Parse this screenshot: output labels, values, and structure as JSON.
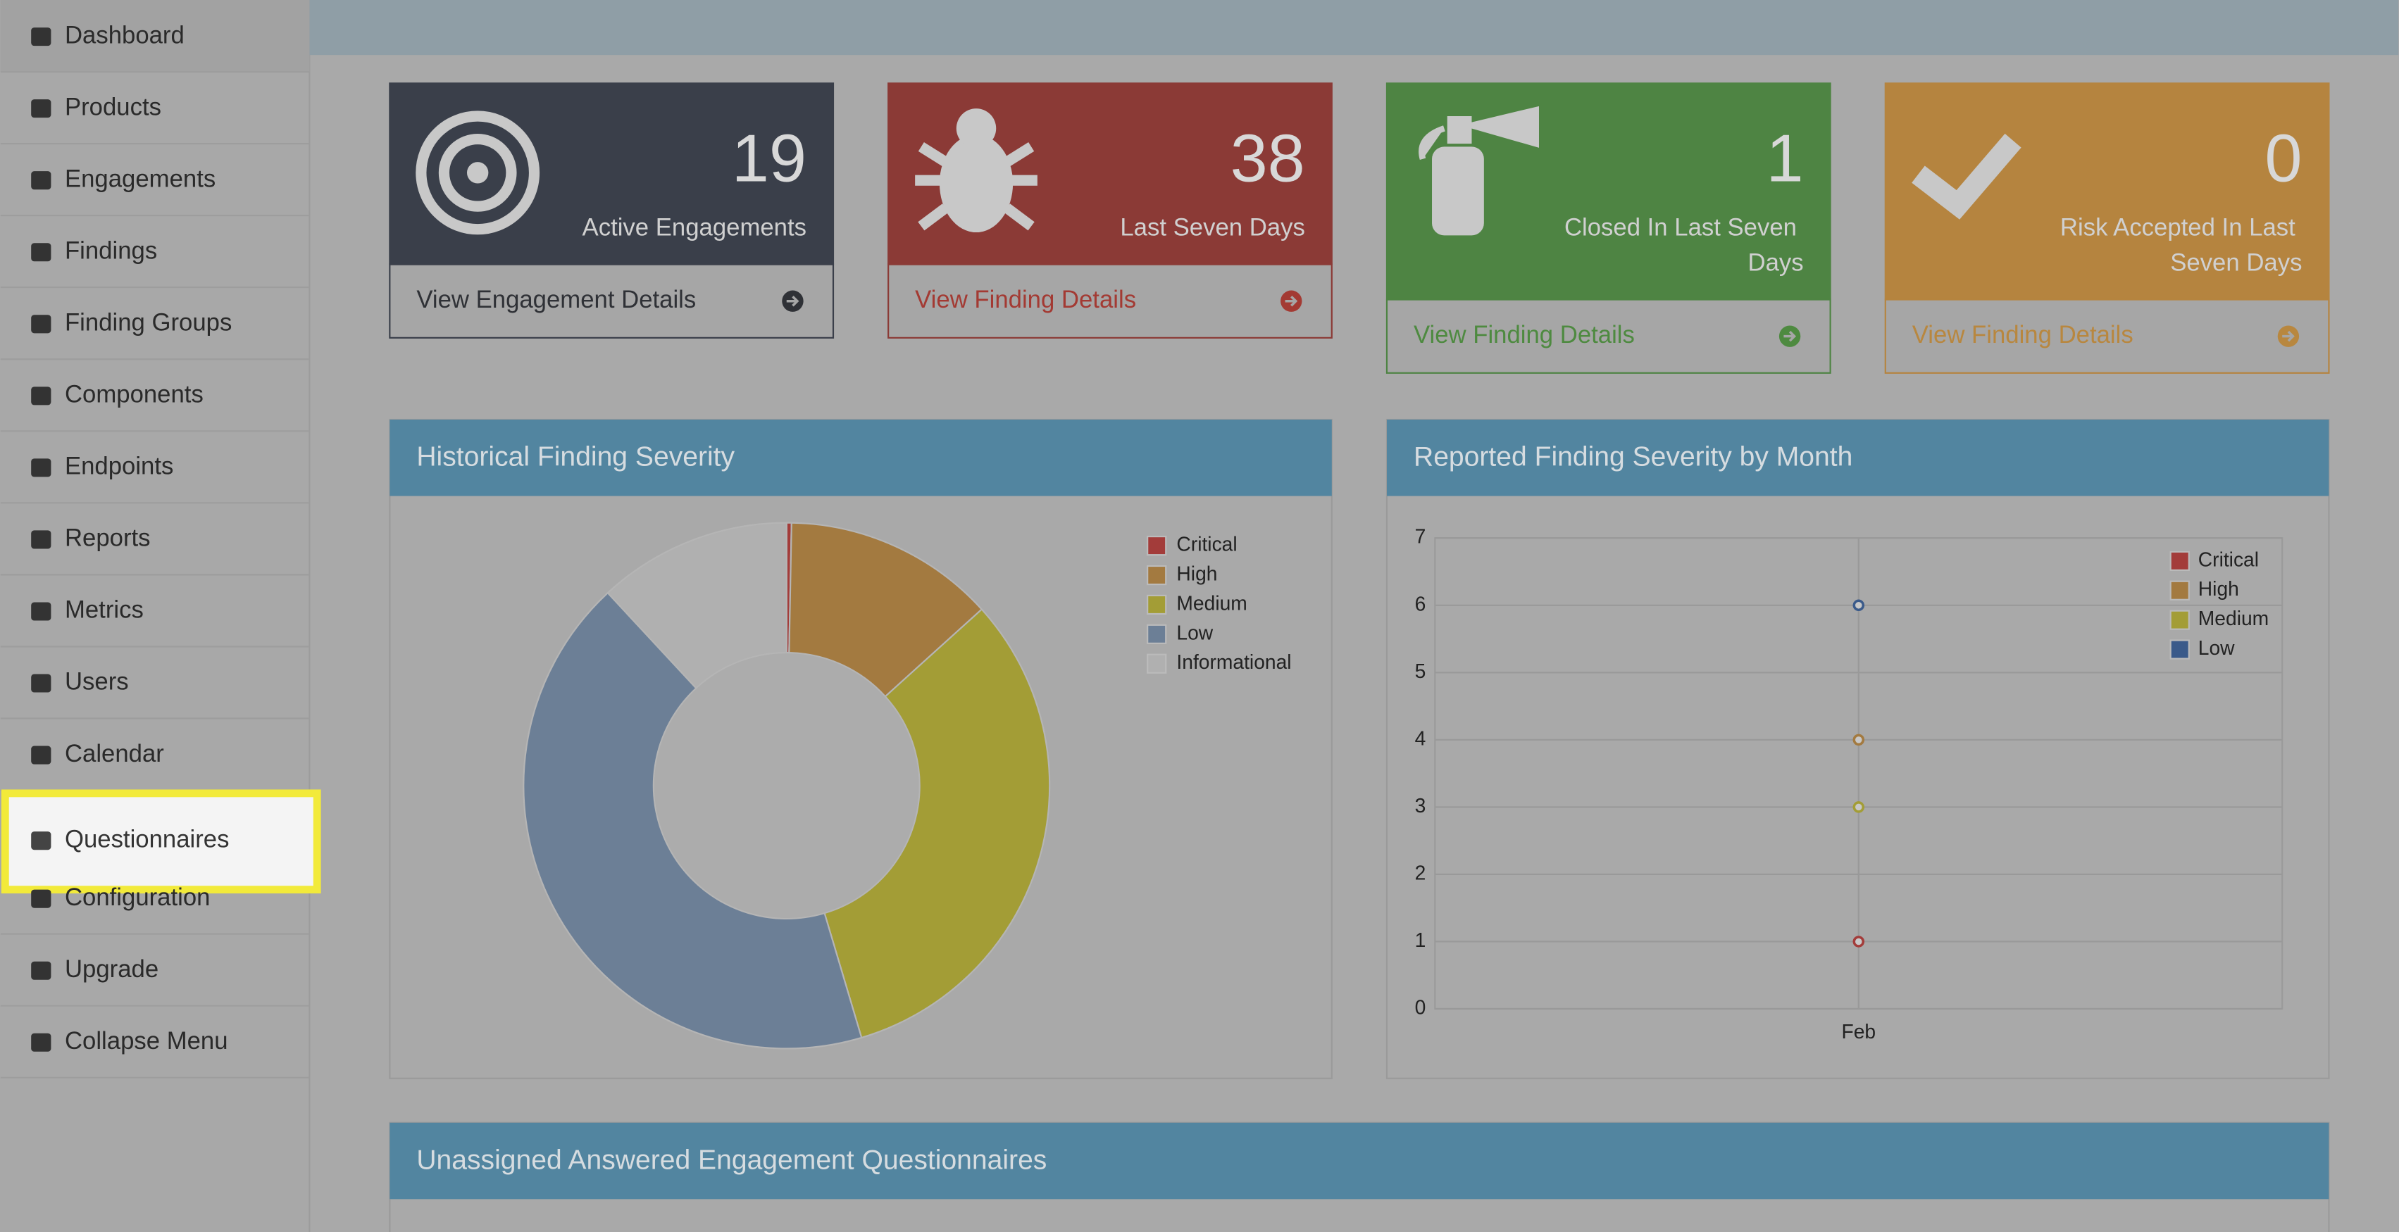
{
  "sidebar": {
    "items": [
      "Dashboard",
      "Products",
      "Engagements",
      "Findings",
      "Finding Groups",
      "Components",
      "Endpoints",
      "Reports",
      "Metrics",
      "Users",
      "Calendar",
      "Questionnaires",
      "Configuration",
      "Upgrade",
      "Collapse Menu"
    ],
    "active_index": 0,
    "highlighted_index": 11
  },
  "cards": [
    {
      "value": 19,
      "label": "Active Engagements",
      "link": "View Engagement Details",
      "color": "#3a3f4a",
      "link_color": "#2f3136"
    },
    {
      "value": 38,
      "label": "Last Seven Days",
      "link": "View Finding Details",
      "color": "#8b3a36",
      "link_color": "#a33a33"
    },
    {
      "value": 1,
      "label": "Closed In Last Seven Days",
      "link": "View Finding Details",
      "color": "#4e8443",
      "link_color": "#4e8a40"
    },
    {
      "value": 0,
      "label": "Risk Accepted In Last Seven Days",
      "link": "View Finding Details",
      "color": "#b5843f",
      "link_color": "#b8873f"
    }
  ],
  "chart_data": [
    {
      "type": "pie",
      "title": "Historical Finding Severity",
      "categories": [
        "Critical",
        "High",
        "Medium",
        "Low",
        "Informational"
      ],
      "values": [
        0.3,
        13,
        32.1,
        42.7,
        11.9
      ],
      "colors": [
        "#a33c3a",
        "#a37a40",
        "#a39d36",
        "#6c7f96",
        "#b0b0b0"
      ],
      "legend": "top-right"
    },
    {
      "type": "scatter",
      "title": "Reported Finding Severity by Month",
      "categories": [
        "Feb"
      ],
      "series": [
        {
          "name": "Critical",
          "color": "#a33c3a",
          "values": [
            1
          ]
        },
        {
          "name": "High",
          "color": "#a37a40",
          "values": [
            4
          ]
        },
        {
          "name": "Medium",
          "color": "#a39d36",
          "values": [
            3
          ]
        },
        {
          "name": "Low",
          "color": "#3a5a8a",
          "values": [
            6
          ]
        }
      ],
      "ylim": [
        0,
        7
      ],
      "yticks": [
        0,
        1,
        2,
        3,
        4,
        5,
        6,
        7
      ],
      "grid": true,
      "legend": "top-right"
    }
  ],
  "questionnaires_panel": {
    "title": "Unassigned Answered Engagement Questionnaires"
  }
}
